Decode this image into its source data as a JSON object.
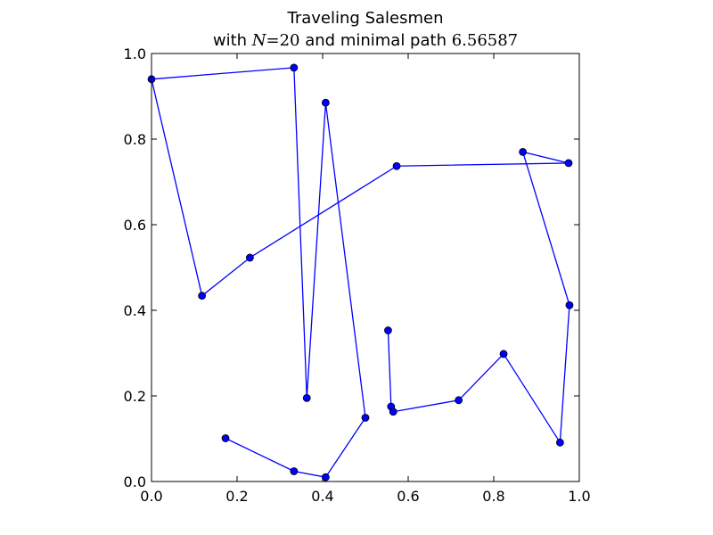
{
  "chart_data": {
    "type": "line",
    "title": {
      "line1": "Traveling Salesmen",
      "line2_prefix": "with ",
      "line2_var": "N",
      "line2_eq": "=20",
      "line2_mid": " and minimal path ",
      "line2_value": "6.56587"
    },
    "xlabel": "",
    "ylabel": "",
    "xlim": [
      0.0,
      1.0
    ],
    "ylim": [
      0.0,
      1.0
    ],
    "xticks": [
      0.0,
      0.2,
      0.4,
      0.6,
      0.8,
      1.0
    ],
    "yticks": [
      0.0,
      0.2,
      0.4,
      0.6,
      0.8,
      1.0
    ],
    "xtick_labels": [
      "0.0",
      "0.2",
      "0.4",
      "0.6",
      "0.8",
      "1.0"
    ],
    "ytick_labels": [
      "0.0",
      "0.2",
      "0.4",
      "0.6",
      "0.8",
      "1.0"
    ],
    "grid": false,
    "series": [
      {
        "color": "#0000ff",
        "marker": "circle",
        "points": [
          [
            0.553,
            0.353
          ],
          [
            0.56,
            0.175
          ],
          [
            0.565,
            0.163
          ],
          [
            0.718,
            0.19
          ],
          [
            0.823,
            0.298
          ],
          [
            0.955,
            0.091
          ],
          [
            0.977,
            0.412
          ],
          [
            0.868,
            0.77
          ],
          [
            0.975,
            0.744
          ],
          [
            0.573,
            0.737
          ],
          [
            0.23,
            0.523
          ],
          [
            0.118,
            0.434
          ],
          [
            0.0,
            0.94
          ],
          [
            0.333,
            0.967
          ],
          [
            0.363,
            0.195
          ],
          [
            0.407,
            0.885
          ],
          [
            0.5,
            0.149
          ],
          [
            0.407,
            0.01
          ],
          [
            0.333,
            0.024
          ],
          [
            0.173,
            0.101
          ]
        ]
      }
    ]
  }
}
